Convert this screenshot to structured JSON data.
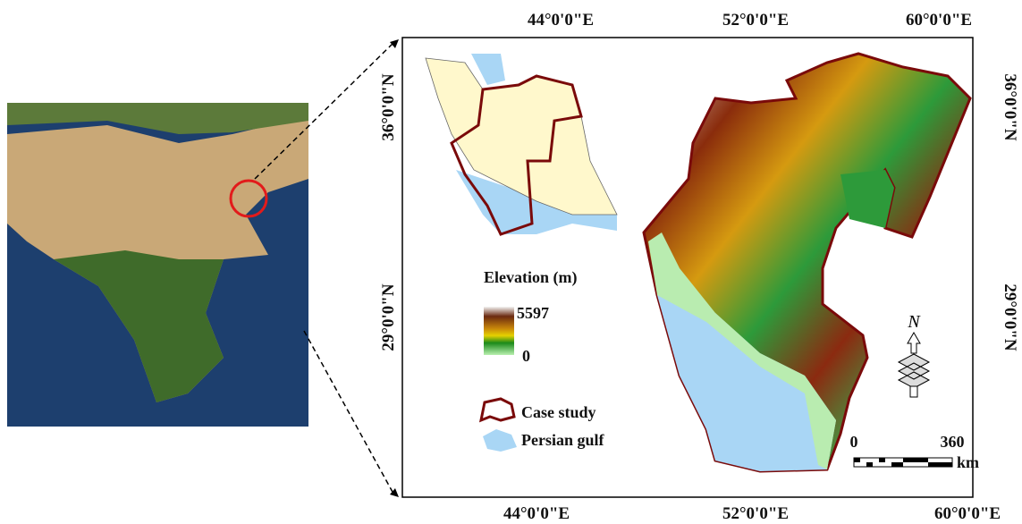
{
  "frame": {
    "longitude_labels": [
      "44°0'0\"E",
      "52°0'0\"E",
      "60°0'0\"E"
    ],
    "latitude_labels": [
      "36°0'0\"N",
      "29°0'0\"N"
    ]
  },
  "legend": {
    "title": "Elevation (m)",
    "max": "5597",
    "min": "0",
    "items": [
      "Case study",
      "Persian gulf"
    ]
  },
  "north_arrow": "N",
  "scale_bar": {
    "start": "0",
    "end": "360",
    "unit": "km"
  }
}
